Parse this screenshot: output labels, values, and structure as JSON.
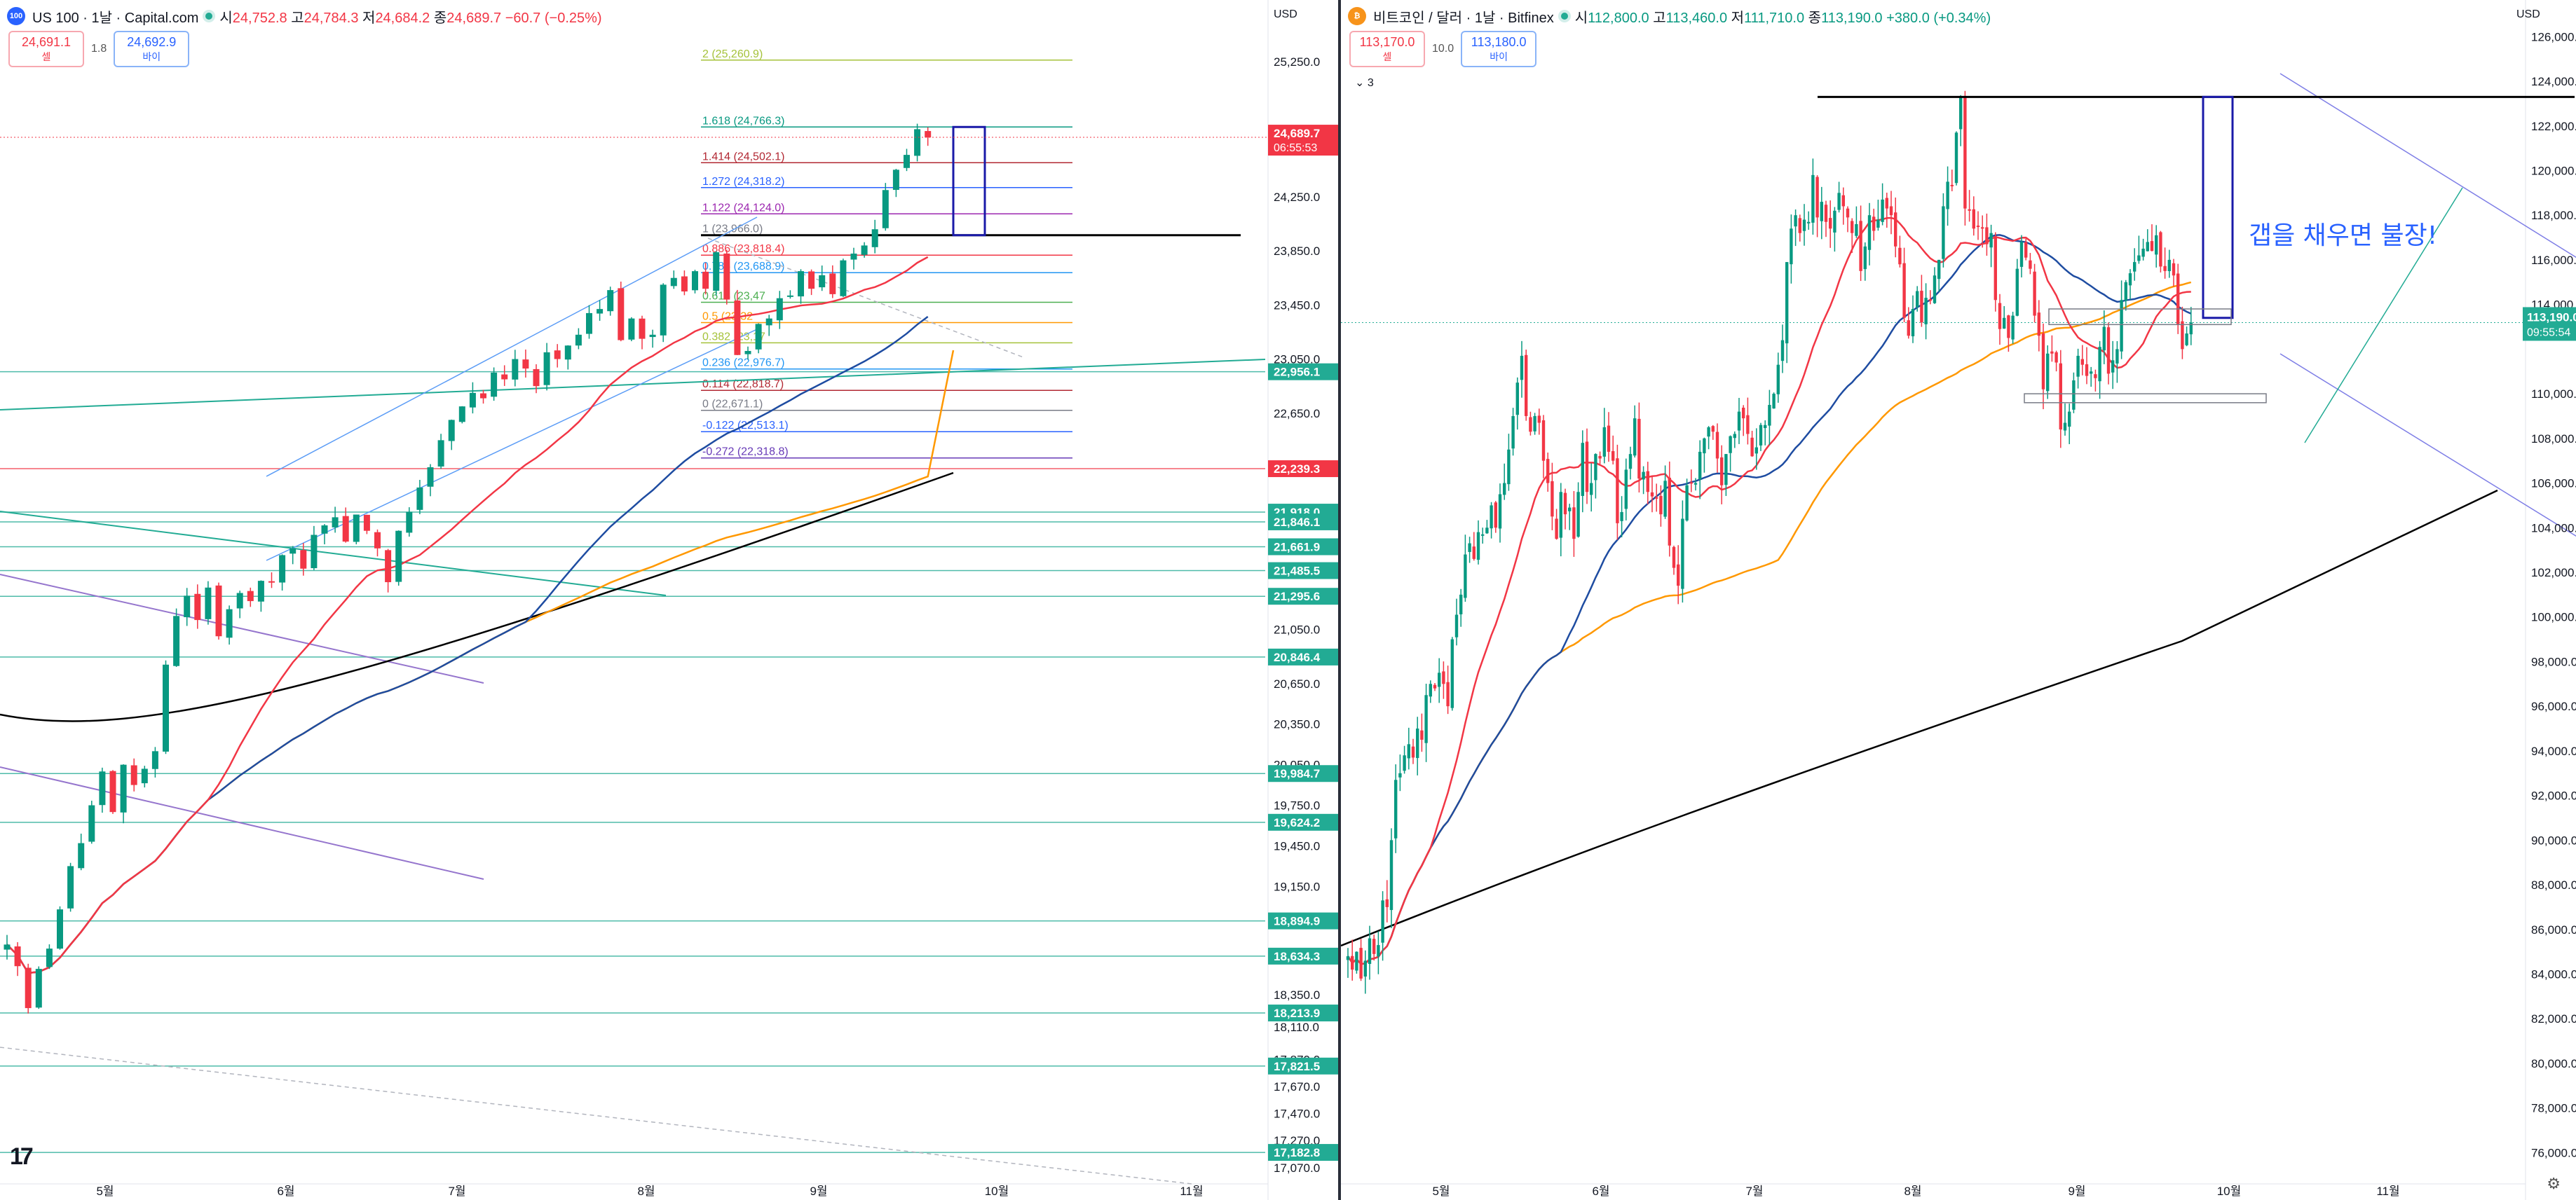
{
  "left": {
    "header": {
      "icon_text": "100",
      "title": "US 100 · 1날 · Capital.com",
      "o_label": "시",
      "o": "24,752.8",
      "h_label": "고",
      "h": "24,784.3",
      "l_label": "저",
      "l": "24,684.2",
      "c_label": "종",
      "c": "24,689.7",
      "change": "−60.7 (−0.25%)"
    },
    "trade": {
      "sell_price": "24,691.1",
      "sell_label": "셀",
      "spread": "1.8",
      "buy_price": "24,692.9",
      "buy_label": "바이"
    },
    "currency": "USD",
    "logo": "17"
  },
  "right": {
    "header": {
      "icon_text": "₿",
      "title": "비트코인 / 달러 · 1날 · Bitfinex",
      "o_label": "시",
      "o": "112,800.0",
      "h_label": "고",
      "h": "113,460.0",
      "l_label": "저",
      "l": "111,710.0",
      "c_label": "종",
      "c": "113,190.0",
      "change": "+380.0 (+0.34%)"
    },
    "trade": {
      "sell_price": "113,170.0",
      "sell_label": "셀",
      "spread": "10.0",
      "buy_price": "113,180.0",
      "buy_label": "바이"
    },
    "currency": "USD",
    "collapse_label": "3"
  },
  "chart_data": [
    {
      "type": "candlestick",
      "title": "US 100 · 1날 · Capital.com",
      "ylim": [
        16950,
        25550
      ],
      "x_tick_labels": [
        "5월",
        "6월",
        "7월",
        "8월",
        "9월",
        "10월",
        "11월"
      ],
      "y_tick_labels": [
        25250,
        24250,
        23850,
        23450,
        23050,
        22650,
        21050,
        20650,
        20350,
        20050,
        19750,
        19450,
        19150,
        18350,
        18110,
        17870,
        17670,
        17470,
        17270,
        17070
      ],
      "y_tick_text": [
        "25,250.0",
        "24,250.0",
        "23,850.0",
        "23,450.0",
        "23,050.0",
        "22,650.0",
        "21,050.0",
        "20,650.0",
        "20,350.0",
        "20,050.0",
        "19,750.0",
        "19,450.0",
        "19,150.0",
        "18,350.0",
        "18,110.0",
        "17,870.0",
        "17,670.0",
        "17,470.0",
        "17,270.0",
        "17,070.0"
      ],
      "last_price": {
        "value": 24689.7,
        "label": "24,689.7",
        "countdown": "06:55:53"
      },
      "price_levels": [
        {
          "value": 22956.1,
          "label": "22,956.1",
          "color": "#22ab94"
        },
        {
          "value": 22239.3,
          "label": "22,239.3",
          "color": "#f23645"
        },
        {
          "value": 21918.0,
          "label": "21,918.0",
          "color": "#22ab94"
        },
        {
          "value": 21846.1,
          "label": "21,846.1",
          "color": "#22ab94"
        },
        {
          "value": 21661.9,
          "label": "21,661.9",
          "color": "#22ab94"
        },
        {
          "value": 21485.5,
          "label": "21,485.5",
          "color": "#22ab94"
        },
        {
          "value": 21295.6,
          "label": "21,295.6",
          "color": "#22ab94"
        },
        {
          "value": 20846.4,
          "label": "20,846.4",
          "color": "#22ab94"
        },
        {
          "value": 19984.7,
          "label": "19,984.7",
          "color": "#22ab94"
        },
        {
          "value": 19624.2,
          "label": "19,624.2",
          "color": "#22ab94"
        },
        {
          "value": 18894.9,
          "label": "18,894.9",
          "color": "#22ab94"
        },
        {
          "value": 18634.3,
          "label": "18,634.3",
          "color": "#22ab94"
        },
        {
          "value": 18213.9,
          "label": "18,213.9",
          "color": "#22ab94"
        },
        {
          "value": 17821.5,
          "label": "17,821.5",
          "color": "#22ab94"
        },
        {
          "value": 17182.8,
          "label": "17,182.8",
          "color": "#22ab94"
        }
      ],
      "fibonacci": [
        {
          "ratio": "2",
          "value": 25260.9,
          "text": "2 (25,260.9)",
          "color": "#a5c23a"
        },
        {
          "ratio": "1.618",
          "value": 24766.3,
          "text": "1.618 (24,766.3)",
          "color": "#089981"
        },
        {
          "ratio": "1.414",
          "value": 24502.1,
          "text": "1.414 (24,502.1)",
          "color": "#b22833"
        },
        {
          "ratio": "1.272",
          "value": 24318.2,
          "text": "1.272 (24,318.2)",
          "color": "#2962ff"
        },
        {
          "ratio": "1.122",
          "value": 24124.0,
          "text": "1.122 (24,124.0)",
          "color": "#9c27b0"
        },
        {
          "ratio": "1",
          "value": 23966.0,
          "text": "1 (23,966.0)",
          "color": "#787b86"
        },
        {
          "ratio": "0.886",
          "value": 23818.4,
          "text": "0.886 (23,818.4)",
          "color": "#f23645"
        },
        {
          "ratio": "0.786",
          "value": 23688.9,
          "text": "0.786 (23,688.9)",
          "color": "#2196f3"
        },
        {
          "ratio": "0.618",
          "value": 23470.0,
          "text": "0.618 (23,47",
          "color": "#4caf50"
        },
        {
          "ratio": "0.5",
          "value": 23320.0,
          "text": "0.5 (23,32",
          "color": "#ff9800"
        },
        {
          "ratio": "0.382",
          "value": 23170.0,
          "text": "0.382 (23,17",
          "color": "#a5c23a"
        },
        {
          "ratio": "0.236",
          "value": 22976.7,
          "text": "0.236 (22,976.7)",
          "color": "#2196f3"
        },
        {
          "ratio": "0.114",
          "value": 22818.7,
          "text": "0.114 (22,818.7)",
          "color": "#b22833"
        },
        {
          "ratio": "0",
          "value": 22671.1,
          "text": "0 (22,671.1)",
          "color": "#787b86"
        },
        {
          "ratio": "-0.122",
          "value": 22513.1,
          "text": "-0.122 (22,513.1)",
          "color": "#2962ff"
        },
        {
          "ratio": "-0.272",
          "value": 22318.8,
          "text": "-0.272 (22,318.8)",
          "color": "#673ab7"
        }
      ],
      "series": [
        {
          "name": "",
          "color_up": "#089981",
          "color_down": "#f23645",
          "close": [
            18720,
            18560,
            18250,
            18540,
            18690,
            18980,
            19300,
            19470,
            19750,
            20000,
            19700,
            20050,
            19900,
            20020,
            20150,
            20790,
            21150,
            21300,
            21120,
            21360,
            21000,
            21200,
            21320,
            21260,
            21410,
            21400,
            21600,
            21650,
            21500,
            21750,
            21820,
            21880,
            21700,
            21900,
            21780,
            21650,
            21400,
            21780,
            21920,
            22100,
            22250,
            22450,
            22600,
            22700,
            22800,
            22760,
            22950,
            22900,
            23050,
            22980,
            22850,
            23100,
            23050,
            23150,
            23230,
            23390,
            23420,
            23560,
            23190,
            23350,
            23200,
            23230,
            23600,
            23650,
            23550,
            23700,
            23570,
            23840,
            23490,
            23080,
            23110,
            23310,
            23350,
            23500,
            23520,
            23700,
            23570,
            23670,
            23530,
            23780,
            23830,
            23890,
            24010,
            24300,
            24450,
            24560,
            24750,
            24689
          ]
        }
      ]
    },
    {
      "type": "candlestick",
      "title": "비트코인 / 달러 · 1날 · Bitfinex",
      "ylim": [
        74600,
        126700
      ],
      "x_tick_labels": [
        "5월",
        "6월",
        "7월",
        "8월",
        "9월",
        "10월",
        "11월"
      ],
      "y_tick_labels": [
        126000,
        124000,
        122000,
        120000,
        118000,
        116000,
        114000,
        110000,
        108000,
        106000,
        104000,
        102000,
        100000,
        98000,
        96000,
        94000,
        92000,
        90000,
        88000,
        86000,
        84000,
        82000,
        80000,
        78000,
        76000
      ],
      "y_tick_text": [
        "126,000.0",
        "124,000.0",
        "122,000.0",
        "120,000.0",
        "118,000.0",
        "116,000.0",
        "114,000.0",
        "110,000.0",
        "108,000.0",
        "106,000.0",
        "104,000.0",
        "102,000.0",
        "100,000.0",
        "98,000.0",
        "96,000.0",
        "94,000.0",
        "92,000.0",
        "90,000.0",
        "88,000.0",
        "86,000.0",
        "84,000.0",
        "82,000.0",
        "80,000.0",
        "78,000.0",
        "76,000.0"
      ],
      "last_price": {
        "value": 113190.0,
        "label": "113,190.0",
        "countdown": "09:55:54"
      },
      "annotation": "갭을 채우면 불장!",
      "series": [
        {
          "name": "",
          "color_up": "#089981",
          "color_down": "#f23645",
          "close": [
            84800,
            84200,
            85000,
            83800,
            84600,
            85600,
            84900,
            85300,
            87300,
            87000,
            90000,
            92700,
            93000,
            93800,
            94300,
            93700,
            95000,
            94500,
            96500,
            97000,
            96800,
            97500,
            97000,
            96000,
            99000,
            100100,
            101000,
            102800,
            103300,
            102600,
            103800,
            103700,
            104000,
            105000,
            104000,
            105500,
            106000,
            107500,
            109000,
            110500,
            111700,
            109000,
            108300,
            109000,
            108700,
            107000,
            106000,
            104500,
            103500,
            105600,
            104600,
            104900,
            103500,
            105600,
            107800,
            105600,
            106000,
            107300,
            107100,
            108500,
            107400,
            107000,
            104200,
            104700,
            106600,
            107300,
            108900,
            106200,
            106500,
            105600,
            105400,
            105300,
            104600,
            106100,
            103200,
            102200,
            101400,
            104400,
            105900,
            106000,
            106000,
            107400,
            108000,
            108500,
            108300,
            107100,
            105900,
            107300,
            108100,
            108200,
            109200,
            108900,
            108200,
            107200,
            107600,
            108600,
            108600,
            109500,
            110000,
            111300,
            112400,
            115900,
            117400,
            118000,
            117200,
            117800,
            117700,
            119800,
            117900,
            118600,
            117700,
            117400,
            118200,
            119000,
            118400,
            117900,
            117200,
            117600,
            115500,
            116600,
            118000,
            117300,
            117800,
            118700,
            118300,
            118000,
            116600,
            115800,
            113400,
            112600,
            113800,
            114600,
            113200,
            114300,
            114200,
            115300,
            116000,
            118400,
            119500,
            119300,
            121700,
            123300,
            118300,
            118200,
            117400,
            117500,
            117400,
            116700,
            117200,
            114200,
            112900,
            113400,
            112500,
            113500,
            115600,
            116800,
            116100,
            115600,
            113500,
            112600,
            110200,
            111800,
            111800,
            111400,
            108400,
            108700,
            109200,
            110600,
            111700,
            111300,
            110800,
            111000,
            110700,
            112100,
            113000,
            110900,
            111500,
            112000,
            114200,
            115000,
            115400,
            115900,
            116200,
            116500,
            116800,
            116400,
            117100,
            115700,
            115500,
            116000,
            115300,
            113100,
            112000,
            112700,
            113190
          ]
        }
      ]
    }
  ]
}
